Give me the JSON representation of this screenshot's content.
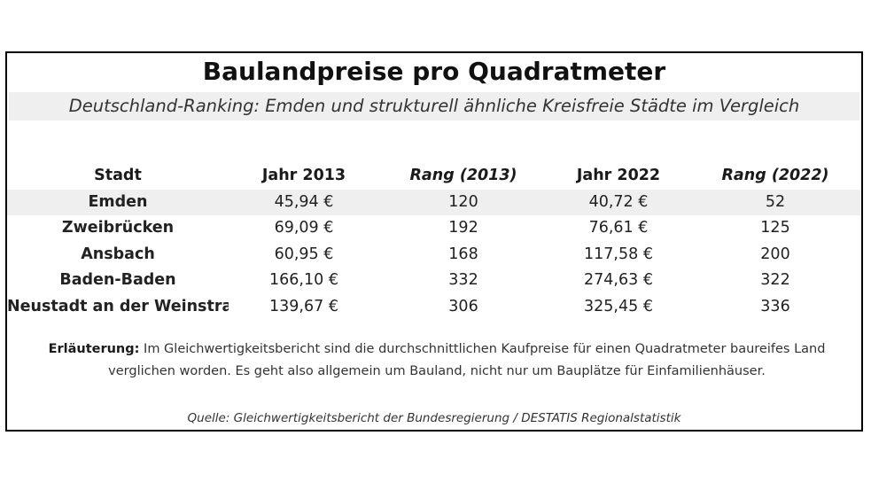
{
  "title": "Baulandpreise pro Quadratmeter",
  "subtitle": "Deutschland-Ranking: Emden und strukturell ähnliche Kreisfreie Städte im Vergleich",
  "table": {
    "headers": {
      "city": "Stadt",
      "year2013": "Jahr 2013",
      "rank2013": "Rang (2013)",
      "year2022": "Jahr 2022",
      "rank2022": "Rang (2022)"
    },
    "rows": [
      {
        "city": "Emden",
        "price2013": "45,94 €",
        "rank2013": "120",
        "price2022": "40,72 €",
        "rank2022": "52"
      },
      {
        "city": "Zweibrücken",
        "price2013": "69,09 €",
        "rank2013": "192",
        "price2022": "76,61 €",
        "rank2022": "125"
      },
      {
        "city": "Ansbach",
        "price2013": "60,95 €",
        "rank2013": "168",
        "price2022": "117,58 €",
        "rank2022": "200"
      },
      {
        "city": "Baden-Baden",
        "price2013": "166,10 €",
        "rank2013": "332",
        "price2022": "274,63 €",
        "rank2022": "322"
      },
      {
        "city": "Neustadt an der Weinstraße",
        "price2013": "139,67 €",
        "rank2013": "306",
        "price2022": "325,45 €",
        "rank2022": "336"
      }
    ]
  },
  "note": {
    "label": "Erläuterung:",
    "text": " Im Gleichwertigkeitsbericht sind die durchschnittlichen Kaufpreise für einen Quadratmeter baureifes Land verglichen worden. Es geht also allgemein um Bauland, nicht nur um Bauplätze für Einfamilienhäuser."
  },
  "source": "Quelle: Gleichwertigkeitsbericht der Bundesregierung / DESTATIS Regionalstatistik",
  "colors": {
    "highlight_band": "#f0efef",
    "border": "#000000"
  }
}
